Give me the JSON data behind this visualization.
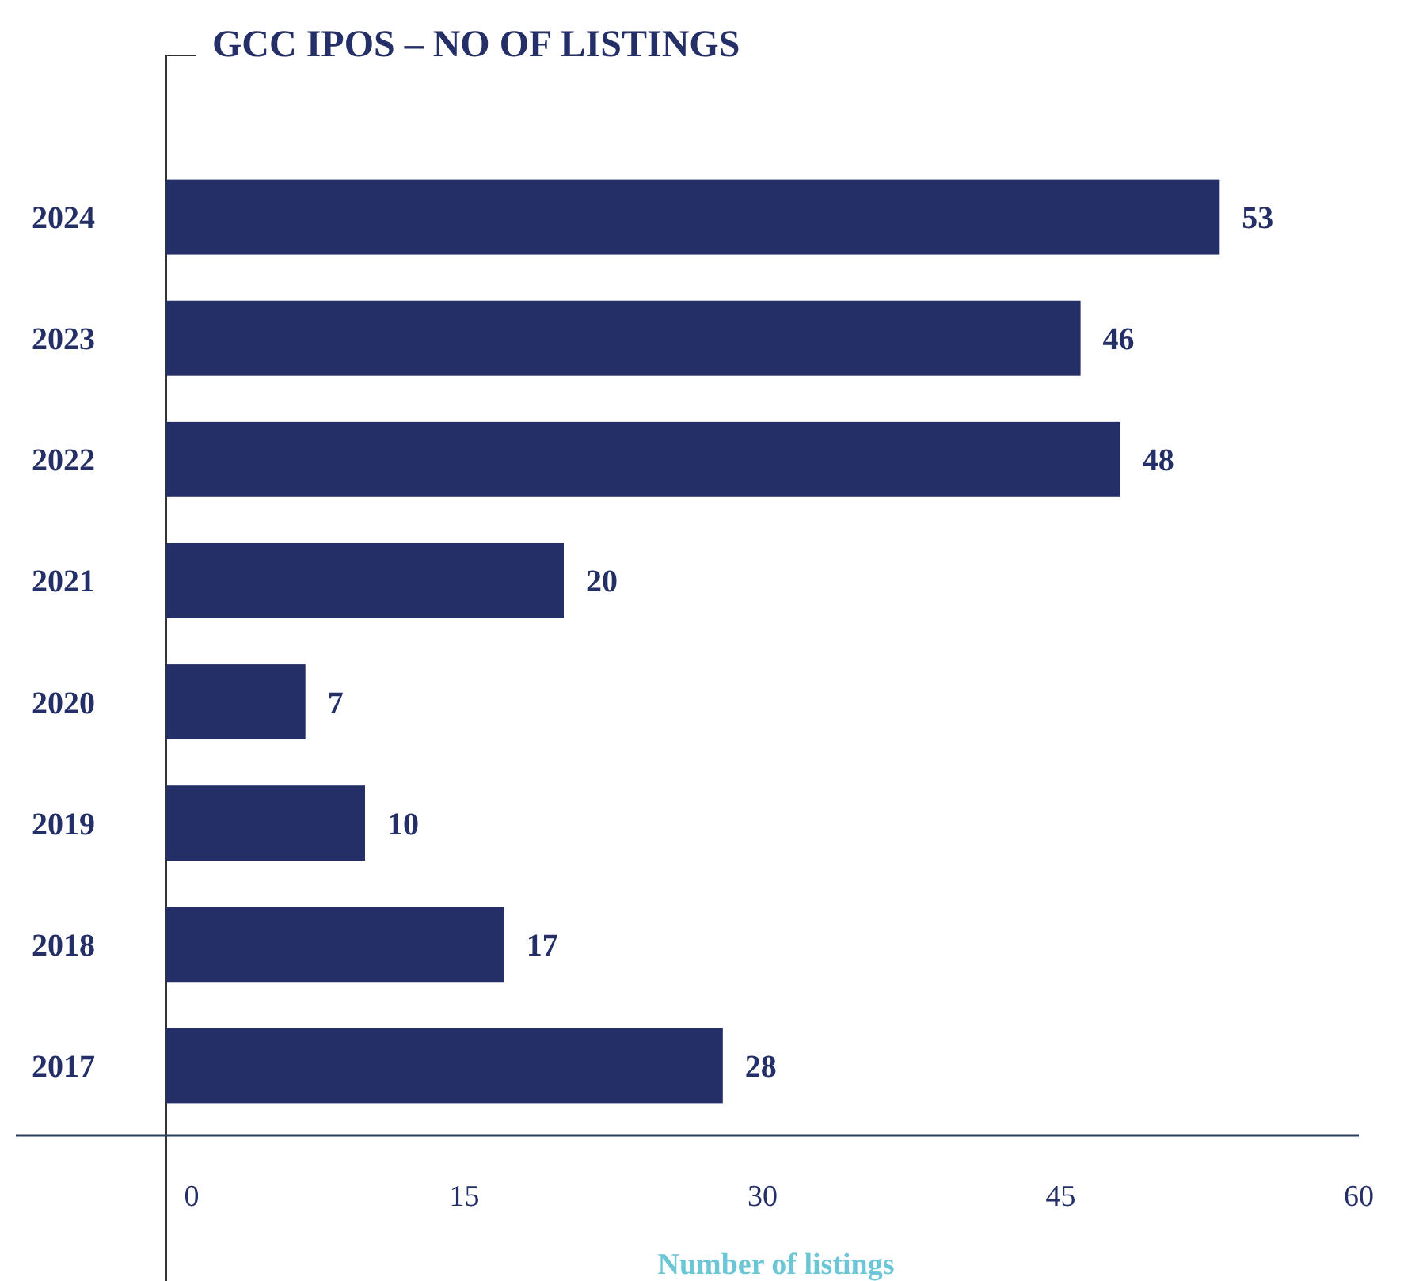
{
  "chart_data": {
    "type": "bar",
    "orientation": "horizontal",
    "title": "GCC IPOS – NO OF LISTINGS",
    "xlabel": "Number of listings",
    "categories": [
      "2024",
      "2023",
      "2022",
      "2021",
      "2020",
      "2019",
      "2018",
      "2017"
    ],
    "values": [
      53,
      46,
      48,
      20,
      7,
      10,
      17,
      28
    ],
    "color": "#232f66",
    "xlim": [
      0,
      60
    ],
    "xticks": [
      0,
      15,
      30,
      45,
      60
    ],
    "data_labels": true,
    "grid": false
  }
}
